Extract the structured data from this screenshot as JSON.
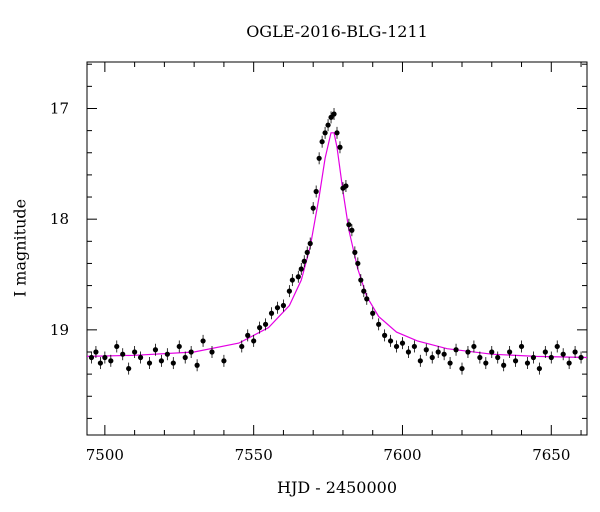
{
  "chart_data": {
    "type": "scatter",
    "title": "OGLE-2016-BLG-1211",
    "xlabel": "HJD - 2450000",
    "ylabel": "I magnitude",
    "xlim": [
      7494,
      7662
    ],
    "ylim": [
      19.95,
      16.58
    ],
    "y_inverted": true,
    "grid": false,
    "xticks": [
      7500,
      7550,
      7600,
      7650
    ],
    "yticks": [
      17,
      18,
      19
    ],
    "xtick_labels": [
      "7500",
      "7550",
      "7600",
      "7650"
    ],
    "ytick_labels": [
      "17",
      "18",
      "19"
    ],
    "colors": {
      "points": "#000000",
      "model": "#e400e4"
    },
    "model": {
      "x": [
        7494,
        7510,
        7530,
        7545,
        7555,
        7562,
        7566,
        7569,
        7572,
        7574,
        7576,
        7577,
        7578,
        7580,
        7582,
        7585,
        7588,
        7592,
        7598,
        7605,
        7615,
        7630,
        7645,
        7662
      ],
      "y": [
        19.24,
        19.23,
        19.2,
        19.12,
        18.98,
        18.78,
        18.55,
        18.25,
        17.8,
        17.45,
        17.22,
        17.22,
        17.35,
        17.75,
        18.1,
        18.45,
        18.7,
        18.88,
        19.02,
        19.1,
        19.17,
        19.22,
        19.24,
        19.25
      ]
    },
    "series": [
      {
        "name": "",
        "x": [
          7495.5,
          7497,
          7498.5,
          7500,
          7502,
          7504,
          7506,
          7508,
          7510,
          7512,
          7515,
          7517,
          7519,
          7521,
          7523,
          7525,
          7527,
          7529,
          7531,
          7533,
          7536,
          7540,
          7546,
          7548,
          7550,
          7552,
          7554,
          7556,
          7558,
          7560,
          7562,
          7563,
          7565,
          7566,
          7567,
          7568,
          7569,
          7570,
          7571,
          7572,
          7573,
          7574,
          7575,
          7576,
          7577,
          7578,
          7579,
          7580,
          7581,
          7582,
          7583,
          7584,
          7585,
          7586,
          7587,
          7588,
          7590,
          7592,
          7594,
          7596,
          7598,
          7600,
          7602,
          7604,
          7606,
          7608,
          7610,
          7612,
          7614,
          7616,
          7618,
          7620,
          7622,
          7624,
          7626,
          7628,
          7630,
          7632,
          7634,
          7636,
          7638,
          7640,
          7642,
          7644,
          7646,
          7648,
          7650,
          7652,
          7654,
          7656,
          7658,
          7660
        ],
        "y": [
          19.25,
          19.2,
          19.3,
          19.25,
          19.28,
          19.15,
          19.22,
          19.35,
          19.2,
          19.25,
          19.3,
          19.18,
          19.28,
          19.22,
          19.3,
          19.15,
          19.25,
          19.2,
          19.32,
          19.1,
          19.2,
          19.28,
          19.15,
          19.05,
          19.1,
          18.98,
          18.95,
          18.85,
          18.8,
          18.78,
          18.65,
          18.55,
          18.52,
          18.45,
          18.38,
          18.3,
          18.22,
          17.9,
          17.75,
          17.45,
          17.3,
          17.22,
          17.15,
          17.08,
          17.05,
          17.22,
          17.35,
          17.72,
          17.7,
          18.05,
          18.1,
          18.3,
          18.4,
          18.55,
          18.65,
          18.72,
          18.85,
          18.95,
          19.05,
          19.1,
          19.15,
          19.12,
          19.2,
          19.15,
          19.28,
          19.18,
          19.25,
          19.2,
          19.22,
          19.3,
          19.18,
          19.35,
          19.2,
          19.15,
          19.25,
          19.3,
          19.2,
          19.25,
          19.32,
          19.2,
          19.28,
          19.15,
          19.3,
          19.25,
          19.35,
          19.2,
          19.25,
          19.15,
          19.22,
          19.3,
          19.2,
          19.25
        ]
      }
    ]
  }
}
